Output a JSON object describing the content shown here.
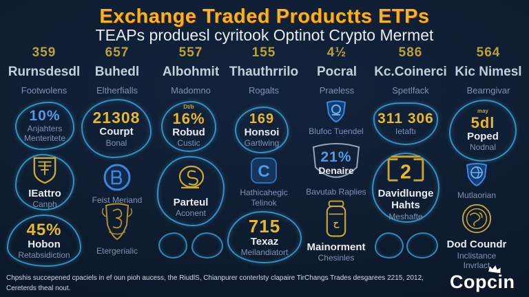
{
  "header": {
    "title": "Exchange Traded Productts ETPs",
    "subtitle": "TEAPs produesl cyritook Optinot Crypto Mermet"
  },
  "colors": {
    "background": "#0e1c30",
    "title_gold": "#f2b51e",
    "title_outline_red": "#c43a12",
    "accent_teal": "#3ea4d6",
    "gold": "#e6b82a",
    "blue": "#4f9ce4",
    "text_white": "#e9edf3",
    "text_dim": "#7e93b4"
  },
  "stats": [
    {
      "value": "359",
      "name": "Rurnsdesdl",
      "sub": "Footwolens"
    },
    {
      "value": "657",
      "name": "Buhedl",
      "sub": "Eltherfialls"
    },
    {
      "value": "557",
      "name": "Albohmit",
      "sub": "Madomno"
    },
    {
      "value": "155",
      "name": "Thauthrrilo",
      "sub": "Rogalts"
    },
    {
      "value": "4½",
      "name": "Pocral",
      "sub": "Praeless"
    },
    {
      "value": "586",
      "name": "Kc.Coinerci",
      "sub": "Spetlfack"
    },
    {
      "value": "564",
      "name": "Kic Nimesl",
      "sub": "Bearngivar"
    }
  ],
  "columns": [
    [
      {
        "num": "10%",
        "num_color": "blue",
        "lines": [
          "Anjahters",
          "Menteritete"
        ]
      },
      {
        "icon": "classic-shield-icon",
        "title": "IEattro",
        "lines": [
          "Canph"
        ]
      },
      {
        "num": "45%",
        "num_color": "gold",
        "title": "Hobon",
        "lines": [
          "Retabsidiction"
        ]
      }
    ],
    [
      {
        "num": "21308",
        "num_color": "gold",
        "title": "Courpt",
        "lines": [
          "Bonal"
        ]
      },
      {
        "icon": "monogram-circle-icon",
        "lines": [
          "Feist Meriand"
        ]
      },
      {
        "icon": "ornate-shield-icon",
        "lines": [
          "Etergerialic"
        ]
      }
    ],
    [
      {
        "sup": "Dt/b",
        "num": "16%",
        "num_color": "gold",
        "title": "Robud",
        "lines": [
          "Custic"
        ]
      },
      {
        "icon": "coin-s-icon",
        "title": "Parteul",
        "lines": [
          "Aconent"
        ]
      },
      {
        "deco": true
      }
    ],
    [
      {
        "num": "169",
        "num_color": "gold",
        "title": "Honsoi",
        "lines": [
          "Gartlwing"
        ]
      },
      {
        "icon": "c-square-icon",
        "lines": [
          "Hathicahegic",
          "Telinok"
        ]
      },
      {
        "num": "715",
        "num_color": "gold",
        "title": "Texaz",
        "lines": [
          "Meilandiatort"
        ]
      }
    ],
    [
      {
        "icon": "badge-shield-icon",
        "lines": [
          "Blufoc Tuendel"
        ]
      },
      {
        "num": "21%",
        "num_color": "blue",
        "title": "Denaire",
        "lines": [
          "Bavutab Raplies"
        ]
      },
      {
        "icon": "canister-icon",
        "title": "Mainorment",
        "lines": [
          "Chesinles"
        ]
      }
    ],
    [
      {
        "num": "311 306",
        "num_color": "gold",
        "lines": [
          "Ietaftı"
        ]
      },
      {
        "icon": "bracket-2-icon",
        "title": "Davidlunge",
        "title2": "Hahts",
        "lines": [
          "Meshafte"
        ]
      },
      {
        "deco": true
      }
    ],
    [
      {
        "sup": "may",
        "num": "5dl",
        "num_color": "gold",
        "title": "Poped",
        "lines": [
          "Nodnal"
        ]
      },
      {
        "icon": "globe-shield-icon",
        "lines": [
          "Mutlaorian"
        ]
      },
      {
        "icon": "coin-globe-icon",
        "title": "Dod Coundr",
        "lines": [
          "Inclistance",
          "Invrlact"
        ]
      }
    ]
  ],
  "footer": {
    "line1": "Chpshis succepened cpaciels in ef oun pioh aucess, the RiudlS, Chianpurer conterlsty clapaire TirChangs Trades desgarees 2215, 2012,",
    "line2": "Cereterds theal nout.",
    "logo": "Copcin"
  },
  "chart_data": {
    "type": "table",
    "title": "Exchange Traded Productts ETPs",
    "subtitle": "TEAPs produesl cyritook Optinot Crypto Mermet",
    "columns": [
      "Rurnsdesdl",
      "Buhedl",
      "Albohmit",
      "Thauthrrilo",
      "Pocral",
      "Kc.Coinerci",
      "Kic Nimesl"
    ],
    "values": [
      "359",
      "657",
      "557",
      "155",
      "4½",
      "586",
      "564"
    ],
    "badge_values": [
      "10%",
      "45%",
      "21308",
      "16%",
      "169",
      "715",
      "21%",
      "311 306",
      "5dl"
    ]
  }
}
